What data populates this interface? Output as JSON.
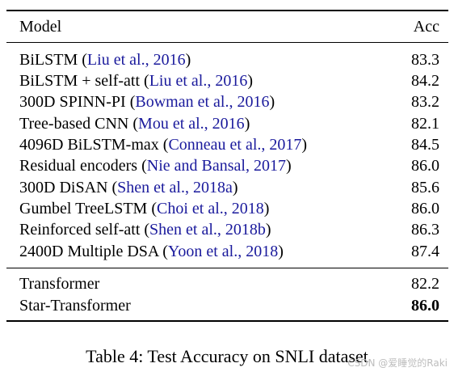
{
  "table": {
    "header": {
      "model": "Model",
      "acc": "Acc"
    },
    "group1": [
      {
        "model": "BiLSTM",
        "cite": "Liu et al., 2016",
        "acc": "83.3"
      },
      {
        "model": "BiLSTM + self-att",
        "cite": "Liu et al., 2016",
        "acc": "84.2"
      },
      {
        "model": "300D SPINN-PI",
        "cite": "Bowman et al., 2016",
        "acc": "83.2"
      },
      {
        "model": "Tree-based CNN",
        "cite": "Mou et al., 2016",
        "acc": "82.1"
      },
      {
        "model": "4096D BiLSTM-max",
        "cite": "Conneau et al., 2017",
        "acc": "84.5"
      },
      {
        "model": "Residual encoders",
        "cite": "Nie and Bansal, 2017",
        "acc": "86.0"
      },
      {
        "model": "300D DiSAN",
        "cite": "Shen et al., 2018a",
        "acc": "85.6"
      },
      {
        "model": "Gumbel TreeLSTM",
        "cite": "Choi et al., 2018",
        "acc": "86.0"
      },
      {
        "model": "Reinforced self-att",
        "cite": "Shen et al., 2018b",
        "acc": "86.3"
      },
      {
        "model": "2400D Multiple DSA",
        "cite": "Yoon et al., 2018",
        "acc": "87.4"
      }
    ],
    "group2": [
      {
        "model": "Transformer",
        "acc": "82.2"
      },
      {
        "model": "Star-Transformer",
        "acc": "86.0"
      }
    ]
  },
  "caption": "Table 4: Test Accuracy on SNLI dataset",
  "watermark": "CSDN @爱睡觉的Raki",
  "colors": {
    "citation": "#1a1a9c",
    "text": "#000000",
    "watermark": "#bdbdbd"
  }
}
